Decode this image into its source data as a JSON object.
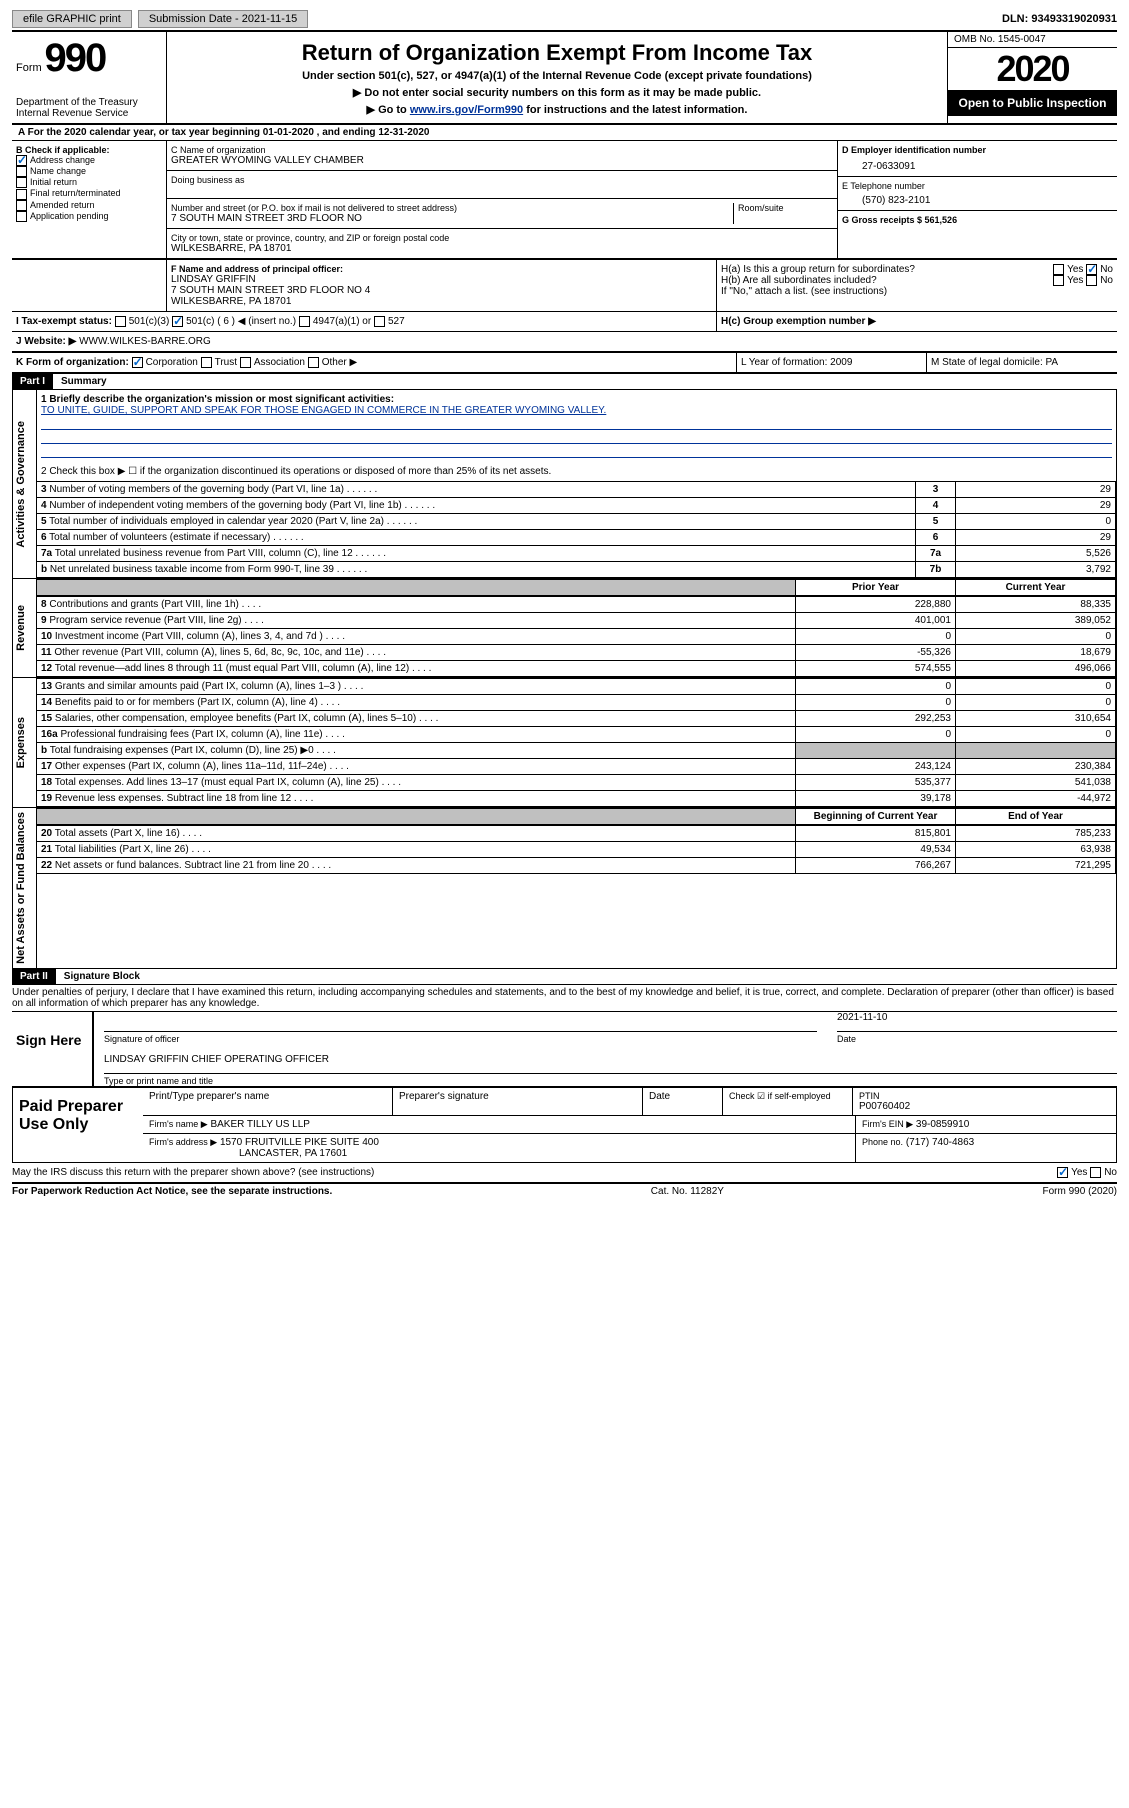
{
  "topbar": {
    "efile": "efile GRAPHIC print",
    "submission_label": "Submission Date - 2021-11-15",
    "dln": "DLN: 93493319020931"
  },
  "header": {
    "form_prefix": "Form",
    "form_number": "990",
    "dept": "Department of the Treasury\nInternal Revenue Service",
    "title": "Return of Organization Exempt From Income Tax",
    "subtitle": "Under section 501(c), 527, or 4947(a)(1) of the Internal Revenue Code (except private foundations)",
    "warn": "▶ Do not enter social security numbers on this form as it may be made public.",
    "goto": "▶ Go to ",
    "goto_link": "www.irs.gov/Form990",
    "goto_suffix": " for instructions and the latest information.",
    "omb": "OMB No. 1545-0047",
    "year": "2020",
    "inspect": "Open to Public Inspection"
  },
  "period": "A For the 2020 calendar year, or tax year beginning 01-01-2020    , and ending 12-31-2020",
  "block_b": {
    "heading": "B Check if applicable:",
    "opts": [
      "Address change",
      "Name change",
      "Initial return",
      "Final return/terminated",
      "Amended return",
      "Application pending"
    ],
    "checked_idx": 0
  },
  "block_c": {
    "name_label": "C Name of organization",
    "name": "GREATER WYOMING VALLEY CHAMBER",
    "dba_label": "Doing business as",
    "street_label": "Number and street (or P.O. box if mail is not delivered to street address)",
    "room_label": "Room/suite",
    "street": "7 SOUTH MAIN STREET 3RD FLOOR NO",
    "city_label": "City or town, state or province, country, and ZIP or foreign postal code",
    "city": "WILKESBARRE, PA  18701"
  },
  "block_d": {
    "label": "D Employer identification number",
    "value": "27-0633091"
  },
  "block_e": {
    "label": "E Telephone number",
    "value": "(570) 823-2101"
  },
  "block_g": {
    "label": "G Gross receipts $ 561,526"
  },
  "block_f": {
    "label": "F  Name and address of principal officer:",
    "name": "LINDSAY GRIFFIN",
    "addr1": "7 SOUTH MAIN STREET 3RD FLOOR NO 4",
    "addr2": "WILKESBARRE, PA  18701"
  },
  "block_h": {
    "ha": "H(a)  Is this a group return for subordinates?",
    "hb": "H(b)  Are all subordinates included?",
    "hnote": "If \"No,\" attach a list. (see instructions)",
    "hc": "H(c)  Group exemption number ▶",
    "yes": "Yes",
    "no": "No"
  },
  "block_i": {
    "label": "I  Tax-exempt status:",
    "opts": [
      "501(c)(3)",
      "501(c) ( 6 ) ◀ (insert no.)",
      "4947(a)(1) or",
      "527"
    ]
  },
  "block_j": {
    "label": "J  Website: ▶",
    "value": "  WWW.WILKES-BARRE.ORG"
  },
  "block_k": {
    "label": "K Form of organization:",
    "opts": [
      "Corporation",
      "Trust",
      "Association",
      "Other ▶"
    ]
  },
  "block_l": {
    "label": "L Year of formation: 2009"
  },
  "block_m": {
    "label": "M State of legal domicile: PA"
  },
  "part1": {
    "hdr": "Part I",
    "title": "Summary"
  },
  "summary": {
    "q1_label": "1  Briefly describe the organization's mission or most significant activities:",
    "q1_text": "TO UNITE, GUIDE, SUPPORT AND SPEAK FOR THOSE ENGAGED IN COMMERCE IN THE GREATER WYOMING VALLEY.",
    "q2": "2  Check this box ▶ ☐  if the organization discontinued its operations or disposed of more than 25% of its net assets.",
    "rows": [
      {
        "n": "3",
        "t": "Number of voting members of the governing body (Part VI, line 1a)",
        "box": "3",
        "v": "29"
      },
      {
        "n": "4",
        "t": "Number of independent voting members of the governing body (Part VI, line 1b)",
        "box": "4",
        "v": "29"
      },
      {
        "n": "5",
        "t": "Total number of individuals employed in calendar year 2020 (Part V, line 2a)",
        "box": "5",
        "v": "0"
      },
      {
        "n": "6",
        "t": "Total number of volunteers (estimate if necessary)",
        "box": "6",
        "v": "29"
      },
      {
        "n": "7a",
        "t": "Total unrelated business revenue from Part VIII, column (C), line 12",
        "box": "7a",
        "v": "5,526"
      },
      {
        "n": "b",
        "t": "Net unrelated business taxable income from Form 990-T, line 39",
        "box": "7b",
        "v": "3,792"
      }
    ],
    "col_prior": "Prior Year",
    "col_curr": "Current Year",
    "revenue": [
      {
        "n": "8",
        "t": "Contributions and grants (Part VIII, line 1h)",
        "p": "228,880",
        "c": "88,335"
      },
      {
        "n": "9",
        "t": "Program service revenue (Part VIII, line 2g)",
        "p": "401,001",
        "c": "389,052"
      },
      {
        "n": "10",
        "t": "Investment income (Part VIII, column (A), lines 3, 4, and 7d )",
        "p": "0",
        "c": "0"
      },
      {
        "n": "11",
        "t": "Other revenue (Part VIII, column (A), lines 5, 6d, 8c, 9c, 10c, and 11e)",
        "p": "-55,326",
        "c": "18,679"
      },
      {
        "n": "12",
        "t": "Total revenue—add lines 8 through 11 (must equal Part VIII, column (A), line 12)",
        "p": "574,555",
        "c": "496,066"
      }
    ],
    "expenses": [
      {
        "n": "13",
        "t": "Grants and similar amounts paid (Part IX, column (A), lines 1–3 )",
        "p": "0",
        "c": "0"
      },
      {
        "n": "14",
        "t": "Benefits paid to or for members (Part IX, column (A), line 4)",
        "p": "0",
        "c": "0"
      },
      {
        "n": "15",
        "t": "Salaries, other compensation, employee benefits (Part IX, column (A), lines 5–10)",
        "p": "292,253",
        "c": "310,654"
      },
      {
        "n": "16a",
        "t": "Professional fundraising fees (Part IX, column (A), line 11e)",
        "p": "0",
        "c": "0"
      },
      {
        "n": "b",
        "t": "Total fundraising expenses (Part IX, column (D), line 25) ▶0",
        "p": "",
        "c": "",
        "grey": true
      },
      {
        "n": "17",
        "t": "Other expenses (Part IX, column (A), lines 11a–11d, 11f–24e)",
        "p": "243,124",
        "c": "230,384"
      },
      {
        "n": "18",
        "t": "Total expenses. Add lines 13–17 (must equal Part IX, column (A), line 25)",
        "p": "535,377",
        "c": "541,038"
      },
      {
        "n": "19",
        "t": "Revenue less expenses. Subtract line 18 from line 12",
        "p": "39,178",
        "c": "-44,972"
      }
    ],
    "col_begin": "Beginning of Current Year",
    "col_end": "End of Year",
    "netassets": [
      {
        "n": "20",
        "t": "Total assets (Part X, line 16)",
        "p": "815,801",
        "c": "785,233"
      },
      {
        "n": "21",
        "t": "Total liabilities (Part X, line 26)",
        "p": "49,534",
        "c": "63,938"
      },
      {
        "n": "22",
        "t": "Net assets or fund balances. Subtract line 21 from line 20",
        "p": "766,267",
        "c": "721,295"
      }
    ],
    "side_gov": "Activities & Governance",
    "side_rev": "Revenue",
    "side_exp": "Expenses",
    "side_net": "Net Assets or Fund Balances"
  },
  "part2": {
    "hdr": "Part II",
    "title": "Signature Block"
  },
  "sig": {
    "perjury": "Under penalties of perjury, I declare that I have examined this return, including accompanying schedules and statements, and to the best of my knowledge and belief, it is true, correct, and complete. Declaration of preparer (other than officer) is based on all information of which preparer has any knowledge.",
    "sign_here": "Sign Here",
    "sig_officer": "Signature of officer",
    "date": "2021-11-10",
    "date_label": "Date",
    "name": "LINDSAY GRIFFIN  CHIEF OPERATING OFFICER",
    "type_label": "Type or print name and title"
  },
  "prep": {
    "heading": "Paid Preparer Use Only",
    "print_label": "Print/Type preparer's name",
    "sig_label": "Preparer's signature",
    "date_label": "Date",
    "check_label": "Check ☑  if self-employed",
    "ptin_label": "PTIN",
    "ptin": "P00760402",
    "firm_name_label": "Firm's name    ▶",
    "firm_name": "BAKER TILLY US LLP",
    "firm_ein_label": "Firm's EIN ▶",
    "firm_ein": "39-0859910",
    "firm_addr_label": "Firm's address ▶",
    "firm_addr": "1570 FRUITVILLE PIKE SUITE 400",
    "firm_city": "LANCASTER, PA  17601",
    "phone_label": "Phone no.",
    "phone": "(717) 740-4863"
  },
  "discuss": "May the IRS discuss this return with the preparer shown above? (see instructions)",
  "footer": {
    "left": "For Paperwork Reduction Act Notice, see the separate instructions.",
    "mid": "Cat. No. 11282Y",
    "right": "Form 990 (2020)"
  }
}
